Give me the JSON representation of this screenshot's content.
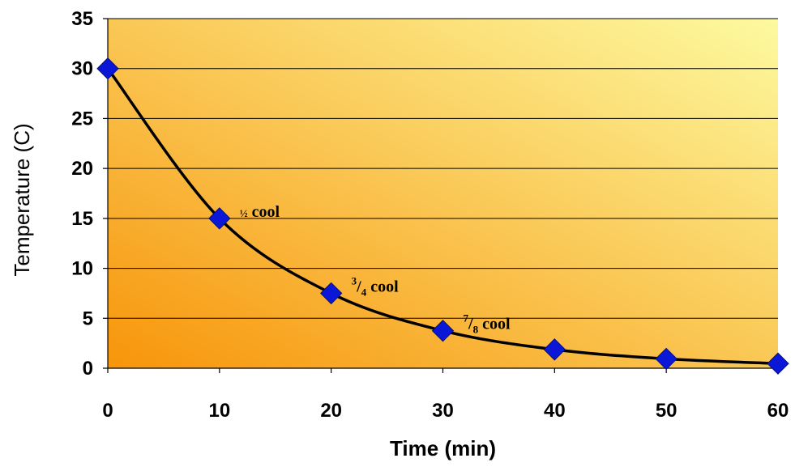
{
  "chart_data": {
    "type": "line",
    "title": "",
    "xlabel": "Time (min)",
    "ylabel": "Temperature (C)",
    "xlim": [
      0,
      60
    ],
    "ylim": [
      0,
      35
    ],
    "x_ticks": [
      0,
      10,
      20,
      30,
      40,
      50,
      60
    ],
    "y_ticks": [
      0,
      5,
      10,
      15,
      20,
      25,
      30,
      35
    ],
    "x_tick_labels": [
      "0",
      "10",
      "20",
      "30",
      "40",
      "50",
      "60"
    ],
    "y_tick_labels": [
      "0",
      "5",
      "10",
      "15",
      "20",
      "25",
      "30",
      "35"
    ],
    "grid": "horizontal",
    "legend": "none",
    "series": [
      {
        "x": [
          0,
          10,
          20,
          30,
          40,
          50,
          60
        ],
        "y": [
          30,
          15,
          7.5,
          3.75,
          1.875,
          0.9375,
          0.47
        ],
        "marker": "diamond",
        "marker_color": "#0b17d6",
        "line_color": "#000000",
        "line_style": "smooth"
      }
    ],
    "annotations": [
      {
        "x": 10,
        "y": 15,
        "sup": "",
        "main": "½",
        "sub": "",
        "suffix": " cool"
      },
      {
        "x": 20,
        "y": 7.5,
        "sup": "3",
        "main": "/",
        "sub": "4",
        "suffix": " cool"
      },
      {
        "x": 30,
        "y": 3.75,
        "sup": "7",
        "main": "/",
        "sub": "8",
        "suffix": " cool"
      }
    ],
    "colors": {
      "background_light": "#fdfaa0",
      "background_dark": "#f7950a",
      "gridline": "#000000",
      "axis": "#000000"
    }
  }
}
